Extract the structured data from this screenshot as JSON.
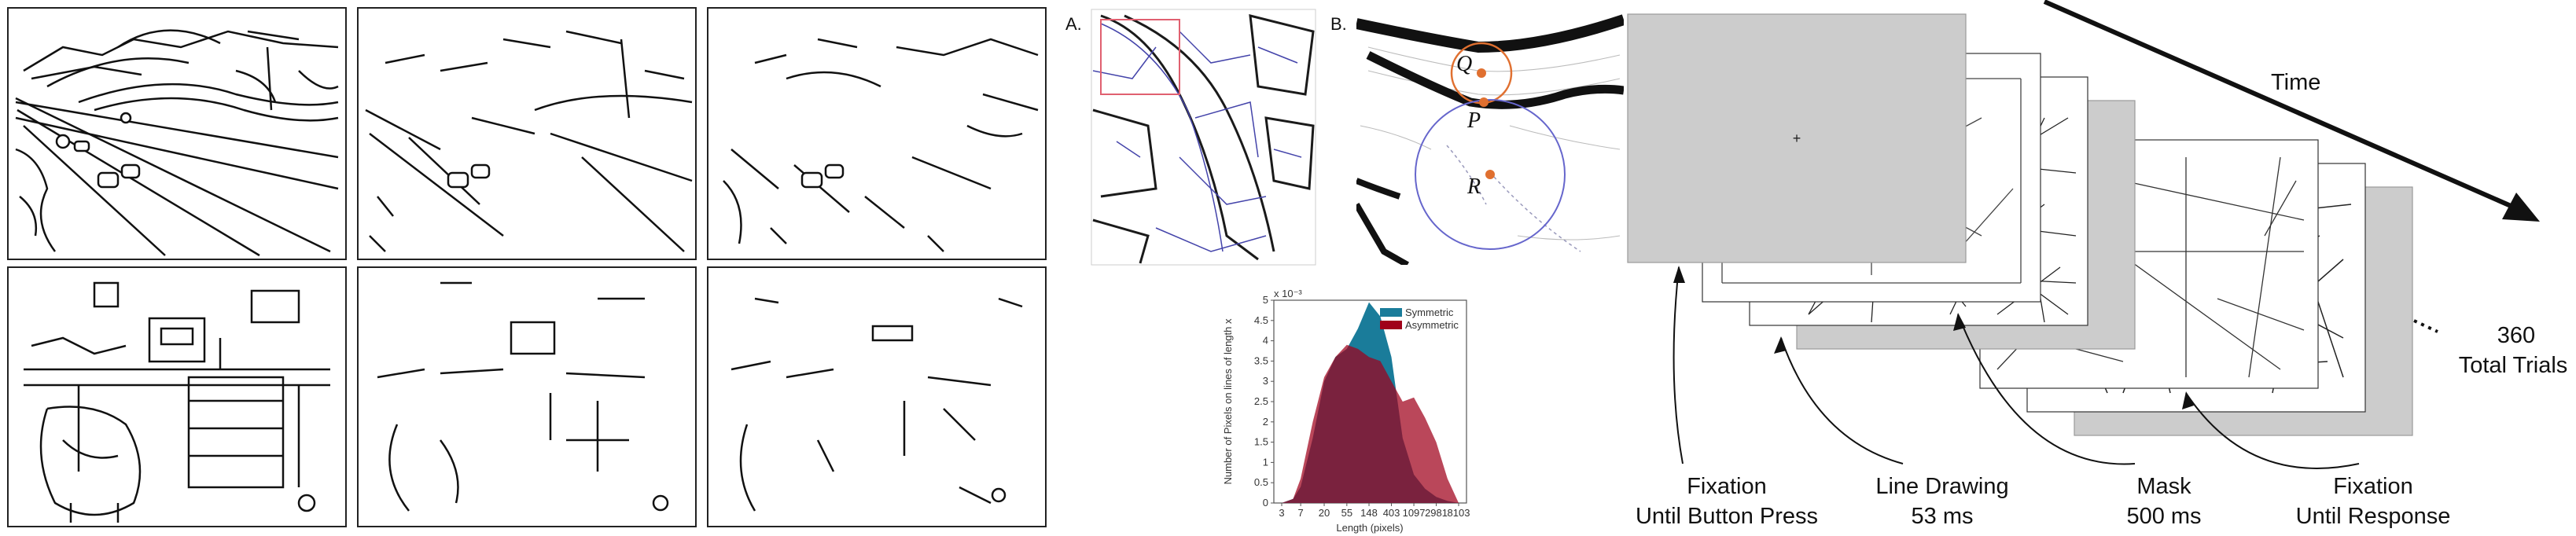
{
  "panels": {
    "a_label": "A.",
    "b_label": "B.",
    "points": {
      "q": "Q",
      "p": "P",
      "r": "R"
    }
  },
  "timeline": {
    "time_label": "Time",
    "trials_count": "360",
    "trials_label": "Total Trials",
    "fixation_mark": "+",
    "stages": [
      {
        "name": "Fixation",
        "detail": "Until Button Press"
      },
      {
        "name": "Line Drawing",
        "detail": "53 ms"
      },
      {
        "name": "Mask",
        "detail": "500 ms"
      },
      {
        "name": "Fixation",
        "detail": "Until Response"
      }
    ]
  },
  "colors": {
    "symmetric": "#1a7c9a",
    "asymmetric": "#a0001a",
    "overlap": "#8f3b63",
    "screen_gray": "#cccccc",
    "orange_point": "#e07030"
  },
  "chart_data": {
    "type": "area",
    "title": "",
    "xlabel": "Length (pixels)",
    "ylabel": "Number of Pixels on lines of length x",
    "y_exponent": "x 10⁻³",
    "x_ticks": [
      "3",
      "7",
      "20",
      "55",
      "148",
      "403",
      "1097",
      "2981",
      "8103"
    ],
    "y_ticks": [
      "0",
      "0.5",
      "1",
      "1.5",
      "2",
      "2.5",
      "3",
      "3.5",
      "4",
      "4.5",
      "5"
    ],
    "ylim": [
      0,
      5
    ],
    "x": [
      3,
      5,
      7,
      12,
      20,
      33,
      55,
      90,
      148,
      245,
      403,
      665,
      1097,
      1808,
      2981,
      4915,
      8103
    ],
    "series": [
      {
        "name": "Symmetric",
        "values": [
          0,
          0.1,
          0.4,
          1.6,
          3.0,
          3.6,
          3.8,
          4.3,
          4.95,
          4.6,
          3.6,
          1.6,
          0.7,
          0.35,
          0.15,
          0.05,
          0
        ]
      },
      {
        "name": "Asymmetric",
        "values": [
          0,
          0.1,
          0.6,
          2.0,
          3.1,
          3.6,
          3.9,
          3.8,
          3.6,
          3.5,
          3.0,
          2.5,
          2.6,
          2.1,
          1.5,
          0.6,
          0
        ]
      }
    ],
    "legend": "top-right",
    "grid": false
  }
}
